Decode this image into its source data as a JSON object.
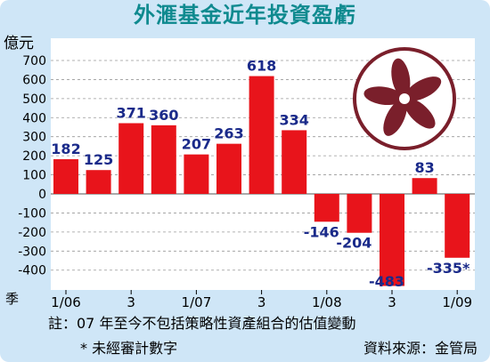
{
  "chart_data": {
    "type": "bar",
    "title": "外滙基金近年投資盈虧",
    "ylabel": "億元",
    "xlabel": "季",
    "ylim": [
      -450,
      720
    ],
    "yticks": [
      700,
      600,
      500,
      400,
      300,
      200,
      100,
      0,
      -100,
      -200,
      -300,
      -400
    ],
    "x_tick_labels": [
      "1/06",
      "3",
      "1/07",
      "3",
      "1/08",
      "3",
      "1/09"
    ],
    "values": [
      182,
      125,
      371,
      360,
      207,
      263,
      618,
      334,
      -146,
      -204,
      -483,
      83,
      -335
    ],
    "labels": [
      "182",
      "125",
      "371",
      "360",
      "207",
      "263",
      "618",
      "334",
      "-146",
      "-204",
      "-483",
      "83",
      "-335*"
    ],
    "bar_color": "#e8141b",
    "grid": "dashed horizontal",
    "legend": "none"
  },
  "note": "註：07 年至今不包括策略性資產組合的估值變動",
  "star_note": "* 未經審計數字",
  "source": "資料來源：金管局",
  "emblem": "bauhinia-emblem"
}
